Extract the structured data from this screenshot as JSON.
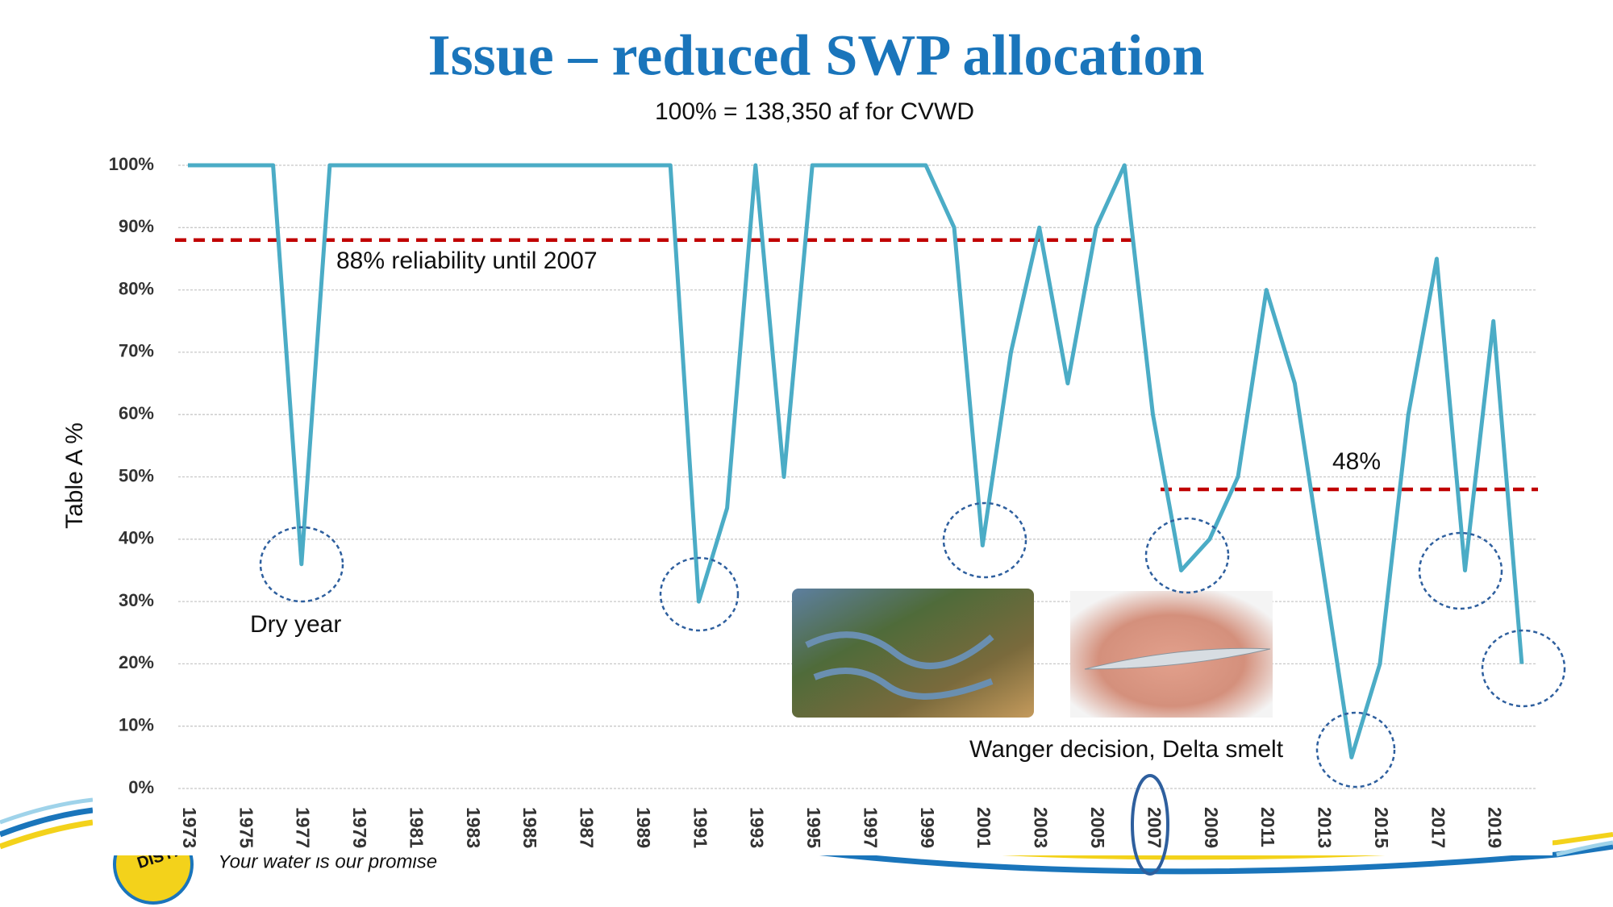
{
  "chart_data": {
    "type": "line",
    "title": "Issue – reduced SWP allocation",
    "subtitle": "100% = 138,350 af for CVWD",
    "y_label": "Table A %",
    "categories": [
      "1973",
      null,
      "1975",
      null,
      "1977",
      null,
      "1979",
      null,
      "1981",
      null,
      "1983",
      null,
      "1985",
      null,
      "1987",
      null,
      "1989",
      null,
      "1991",
      null,
      "1993",
      null,
      "1995",
      null,
      "1997",
      null,
      "1999",
      null,
      "2001",
      null,
      "2003",
      null,
      "2005",
      null,
      "2007",
      null,
      "2009",
      null,
      "2011",
      null,
      "2013",
      null,
      "2015",
      null,
      "2017",
      null,
      "2019",
      null
    ],
    "series": [
      {
        "name": "Table A %",
        "color": "#4bacc6",
        "values": [
          100,
          100,
          100,
          100,
          36,
          100,
          100,
          100,
          100,
          100,
          100,
          100,
          100,
          100,
          100,
          100,
          100,
          100,
          30,
          45,
          100,
          50,
          100,
          100,
          100,
          100,
          100,
          90,
          39,
          70,
          90,
          65,
          90,
          100,
          60,
          35,
          40,
          50,
          80,
          65,
          35,
          5,
          20,
          60,
          85,
          35,
          75,
          20
        ]
      }
    ],
    "ylim": [
      0,
      100
    ],
    "yticks": [
      {
        "value": 0,
        "label": "0%"
      },
      {
        "value": 10,
        "label": "10%"
      },
      {
        "value": 20,
        "label": "20%"
      },
      {
        "value": 30,
        "label": "30%"
      },
      {
        "value": 40,
        "label": "40%"
      },
      {
        "value": 50,
        "label": "50%"
      },
      {
        "value": 60,
        "label": "60%"
      },
      {
        "value": 70,
        "label": "70%"
      },
      {
        "value": 80,
        "label": "80%"
      },
      {
        "value": 90,
        "label": "90%"
      },
      {
        "value": 100,
        "label": "100%"
      }
    ],
    "grid": true,
    "reference_lines": [
      {
        "value": 88,
        "label": "88% reliability until 2007",
        "color": "#c00000"
      },
      {
        "value": 48,
        "label": "48%",
        "color": "#c00000"
      }
    ],
    "annotations": [
      "Dry year",
      "Wanger decision, Delta smelt"
    ]
  },
  "footer": {
    "logo_text": "DISTRICT",
    "tagline": "Your water is our promise"
  }
}
